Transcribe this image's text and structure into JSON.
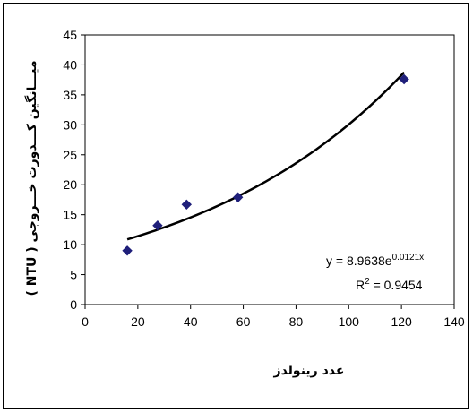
{
  "chart_data": {
    "type": "scatter",
    "title": "",
    "xlabel": "عدد رینولدز",
    "ylabel": "میـــانگین کـــدورت خـــروجی ( NTU )",
    "xlim": [
      0,
      140
    ],
    "ylim": [
      0,
      45
    ],
    "xticks": [
      "0",
      "20",
      "40",
      "60",
      "80",
      "100",
      "120",
      "140"
    ],
    "yticks": [
      "0",
      "5",
      "10",
      "15",
      "20",
      "25",
      "30",
      "35",
      "40",
      "45"
    ],
    "grid": false,
    "series": [
      {
        "marker": "diamond",
        "color": "#1f1f7a",
        "points": [
          {
            "x": 16,
            "y": 9.0
          },
          {
            "x": 27.5,
            "y": 13.2
          },
          {
            "x": 38.5,
            "y": 16.7
          },
          {
            "x": 58,
            "y": 17.9
          },
          {
            "x": 121,
            "y": 37.6
          }
        ]
      }
    ],
    "trendline": {
      "type": "exponential",
      "a": 8.9638,
      "b": 0.0121,
      "x_range": [
        16,
        121
      ],
      "color": "#000000",
      "equation_text": "y = 8.9638e",
      "equation_exponent": "0.0121x",
      "r2_prefix": "R",
      "r2_sup": "2",
      "r2_value_text": " = 0.9454"
    }
  }
}
